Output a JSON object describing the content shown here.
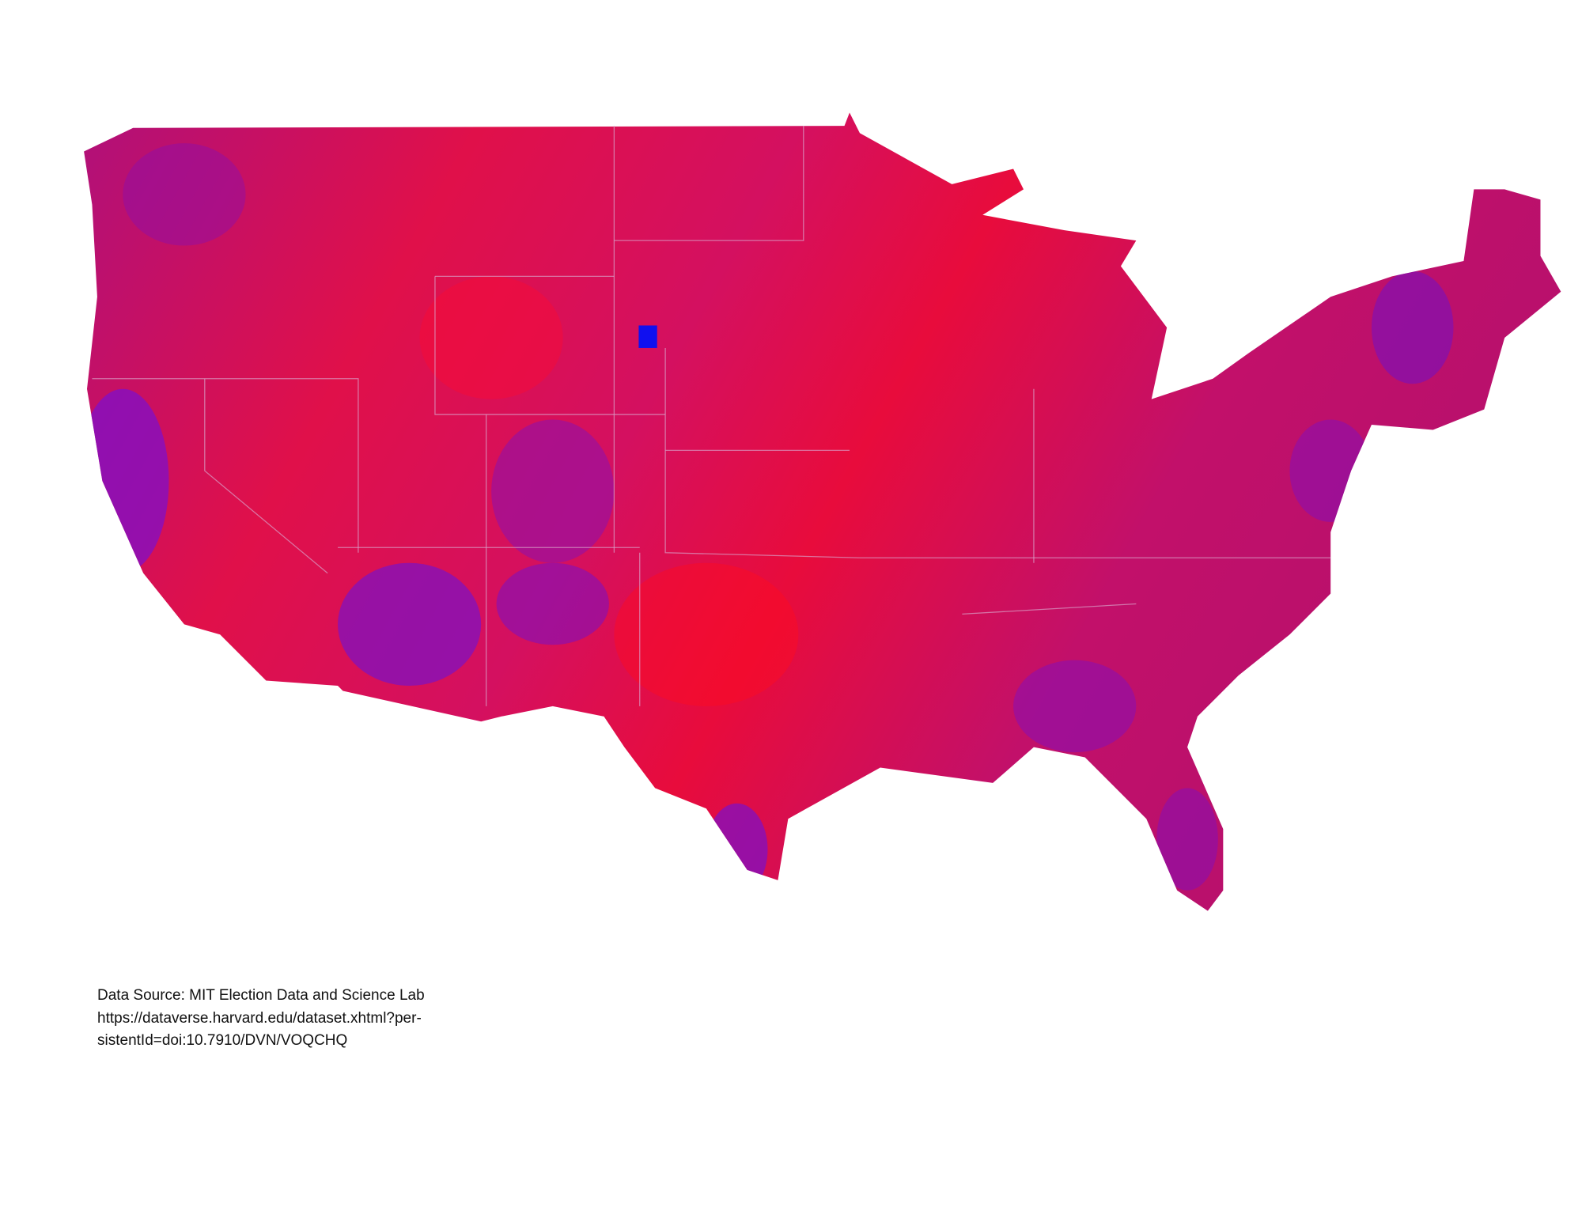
{
  "source": {
    "lines": [
      "Data Source: MIT Election Data and Science Lab",
      "https://dataverse.harvard.edu/dataset.xhtml?per-",
      "sistentId=doi:10.7910/DVN/VOQCHQ"
    ]
  }
}
